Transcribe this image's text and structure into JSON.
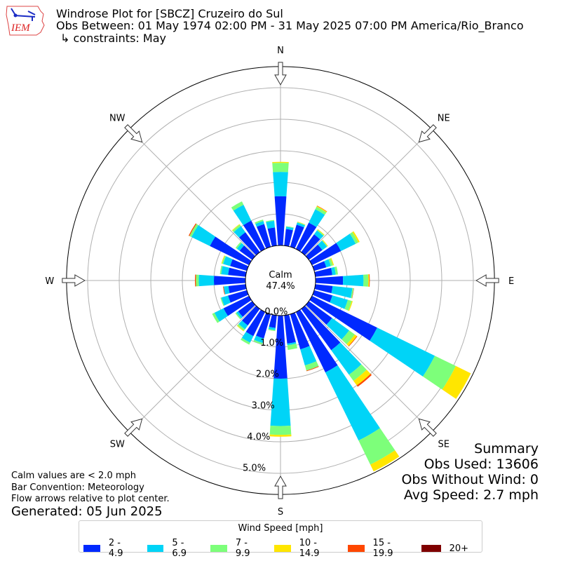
{
  "header": {
    "title": "Windrose Plot for [SBCZ] Cruzeiro do Sul",
    "obs_between": "Obs Between: 01 May 1974 02:00 PM - 31 May 2025 07:00 PM America/Rio_Branco",
    "constraints": "↳ constraints: May",
    "logo_text": "IEM"
  },
  "summary": {
    "title": "Summary",
    "obs_used": "Obs Used: 13606",
    "obs_without_wind": "Obs Without Wind: 0",
    "avg_speed": "Avg Speed: 2.7 mph"
  },
  "notes": {
    "calm_def": "Calm values are < 2.0 mph",
    "bar_convention": "Bar Convention: Meteorology",
    "flow_arrows": "Flow arrows relative to plot center.",
    "generated": "Generated: 05 Jun 2025"
  },
  "chart_data": {
    "type": "windrose",
    "calm_label": "Calm",
    "calm_value": "47.4%",
    "radial_ticks": [
      "0.0%",
      "1.0%",
      "2.0%",
      "3.0%",
      "4.0%",
      "5.0%"
    ],
    "radial_tick_values": [
      0,
      1,
      2,
      3,
      4,
      5
    ],
    "radial_max": 5.67,
    "grid": true,
    "compass_labels": [
      {
        "label": "N",
        "bearing": 0
      },
      {
        "label": "NE",
        "bearing": 45
      },
      {
        "label": "E",
        "bearing": 90
      },
      {
        "label": "SE",
        "bearing": 135
      },
      {
        "label": "S",
        "bearing": 180
      },
      {
        "label": "SW",
        "bearing": 225
      },
      {
        "label": "W",
        "bearing": 270
      },
      {
        "label": "NW",
        "bearing": 315
      }
    ],
    "legend": {
      "title": "Wind Speed [mph]",
      "placement": "bottom",
      "bins": [
        {
          "label": "2 - 4.9",
          "color": "#0029ff"
        },
        {
          "label": "5 - 6.9",
          "color": "#00d4f7"
        },
        {
          "label": "7 - 9.9",
          "color": "#7dff7a"
        },
        {
          "label": "10 - 14.9",
          "color": "#ffe600"
        },
        {
          "label": "15 - 19.9",
          "color": "#ff4700"
        },
        {
          "label": "20+",
          "color": "#7f0000"
        }
      ]
    },
    "unit": "percent frequency",
    "directions": [
      {
        "bearing": 0,
        "values": [
          1.56,
          0.77,
          0.29,
          0.03,
          0,
          0
        ]
      },
      {
        "bearing": 10,
        "values": [
          0.53,
          0.07,
          0.02,
          0,
          0,
          0
        ]
      },
      {
        "bearing": 20,
        "values": [
          0.73,
          0.07,
          0.02,
          0.01,
          0,
          0
        ]
      },
      {
        "bearing": 30,
        "values": [
          0.93,
          0.47,
          0.09,
          0.03,
          0.01,
          0
        ]
      },
      {
        "bearing": 40,
        "values": [
          0.7,
          0.15,
          0.03,
          0.02,
          0,
          0
        ]
      },
      {
        "bearing": 50,
        "values": [
          0.53,
          0.18,
          0.02,
          0.02,
          0,
          0
        ]
      },
      {
        "bearing": 60,
        "values": [
          1.02,
          0.52,
          0.09,
          0.05,
          0,
          0
        ]
      },
      {
        "bearing": 70,
        "values": [
          0.4,
          0.15,
          0.07,
          0.03,
          0,
          0
        ]
      },
      {
        "bearing": 80,
        "values": [
          0.54,
          0.11,
          0.07,
          0,
          0,
          0
        ]
      },
      {
        "bearing": 90,
        "values": [
          0.87,
          0.65,
          0.15,
          0.03,
          0.02,
          0
        ]
      },
      {
        "bearing": 100,
        "values": [
          0.55,
          0.63,
          0.04,
          0,
          0.01,
          0
        ]
      },
      {
        "bearing": 110,
        "values": [
          0.6,
          0.51,
          0.13,
          0.03,
          0,
          0
        ]
      },
      {
        "bearing": 120,
        "values": [
          2.3,
          2.03,
          0.74,
          0.53,
          0,
          0
        ]
      },
      {
        "bearing": 130,
        "values": [
          0.91,
          0.67,
          0.22,
          0.08,
          0.02,
          0
        ]
      },
      {
        "bearing": 140,
        "values": [
          1.62,
          0.96,
          0.24,
          0.18,
          0.05,
          0
        ]
      },
      {
        "bearing": 150,
        "values": [
          2.13,
          2.4,
          0.85,
          0.24,
          0,
          0
        ]
      },
      {
        "bearing": 160,
        "values": [
          1.16,
          0.53,
          0.17,
          0,
          0.02,
          0
        ]
      },
      {
        "bearing": 170,
        "values": [
          0.9,
          0.05,
          0.15,
          0,
          0,
          0
        ]
      },
      {
        "bearing": 180,
        "values": [
          2.0,
          1.5,
          0.28,
          0.06,
          0,
          0
        ]
      },
      {
        "bearing": 190,
        "values": [
          0.4,
          0.07,
          0.03,
          0,
          0,
          0
        ]
      },
      {
        "bearing": 200,
        "values": [
          0.8,
          0.15,
          0.05,
          0,
          0,
          0
        ]
      },
      {
        "bearing": 210,
        "values": [
          0.85,
          0.23,
          0.07,
          0,
          0,
          0
        ]
      },
      {
        "bearing": 220,
        "values": [
          0.65,
          0.15,
          0.06,
          0.02,
          0,
          0
        ]
      },
      {
        "bearing": 230,
        "values": [
          0.55,
          0.07,
          0.04,
          0,
          0,
          0
        ]
      },
      {
        "bearing": 240,
        "values": [
          0.9,
          0.32,
          0.08,
          0,
          0,
          0
        ]
      },
      {
        "bearing": 250,
        "values": [
          0.62,
          0.22,
          0.03,
          0,
          0,
          0
        ]
      },
      {
        "bearing": 260,
        "values": [
          0.55,
          0.15,
          0,
          0,
          0.02,
          0
        ]
      },
      {
        "bearing": 270,
        "values": [
          1.0,
          0.48,
          0.09,
          0,
          0.03,
          0
        ]
      },
      {
        "bearing": 280,
        "values": [
          0.56,
          0.22,
          0.04,
          0,
          0,
          0
        ]
      },
      {
        "bearing": 290,
        "values": [
          0.55,
          0.23,
          0.04,
          0.02,
          0,
          0
        ]
      },
      {
        "bearing": 300,
        "values": [
          1.38,
          0.65,
          0.07,
          0,
          0.03,
          0
        ]
      },
      {
        "bearing": 310,
        "values": [
          0.49,
          0.11,
          0.05,
          0,
          0,
          0
        ]
      },
      {
        "bearing": 320,
        "values": [
          0.78,
          0.24,
          0.06,
          0.02,
          0,
          0
        ]
      },
      {
        "bearing": 330,
        "values": [
          1.0,
          0.56,
          0.12,
          0,
          0,
          0
        ]
      },
      {
        "bearing": 340,
        "values": [
          0.75,
          0.1,
          0.05,
          0,
          0,
          0
        ]
      },
      {
        "bearing": 350,
        "values": [
          0.58,
          0.21,
          0.03,
          0,
          0,
          0
        ]
      }
    ]
  }
}
